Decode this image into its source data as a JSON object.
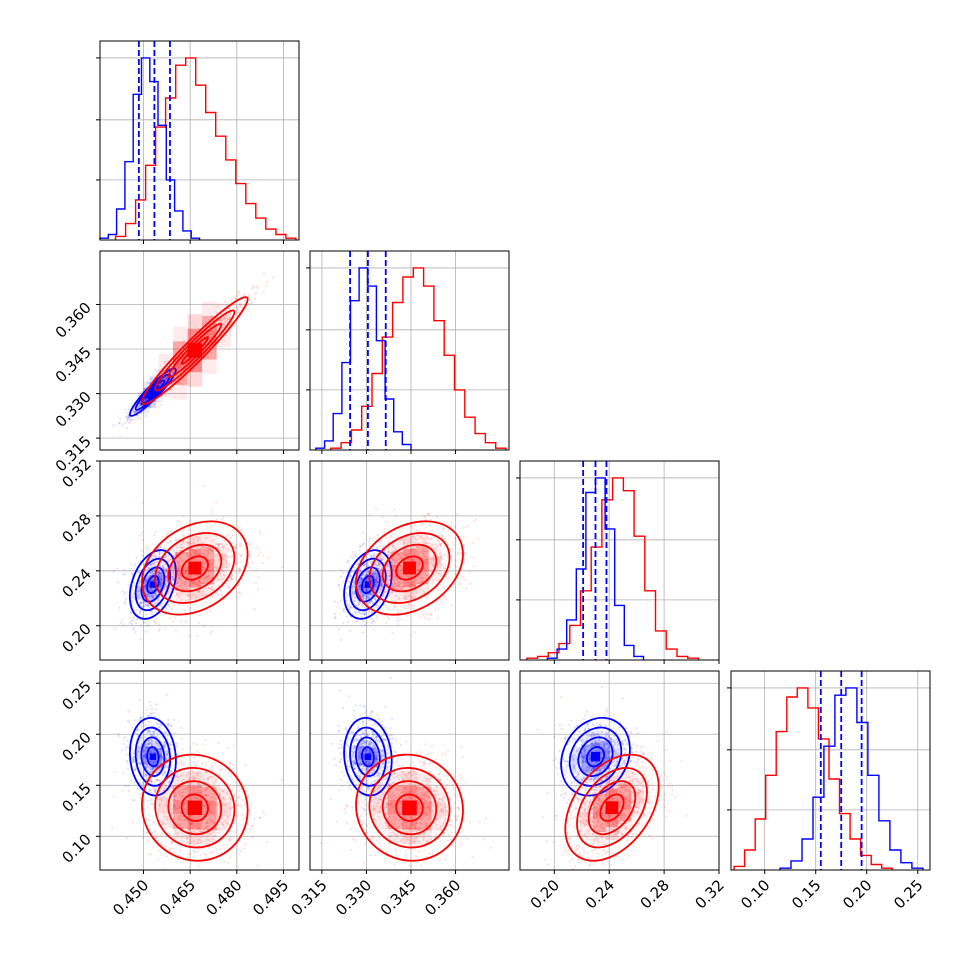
{
  "chart_data": {
    "type": "corner",
    "colors": {
      "blue": "#0000ff",
      "red": "#ff0000"
    },
    "grid": true,
    "parameters": [
      {
        "range": [
          0.436,
          0.5
        ],
        "ticks": [
          "0.450",
          "0.465",
          "0.480",
          "0.495"
        ],
        "tick_values": [
          0.45,
          0.465,
          0.48,
          0.495
        ],
        "quantiles_blue": [
          0.4485,
          0.4535,
          0.4585
        ],
        "hist_blue": [
          1,
          3,
          17,
          43,
          80,
          100,
          87,
          63,
          33,
          16,
          5,
          1
        ],
        "hist_red": [
          2,
          9,
          22,
          41,
          62,
          78,
          96,
          100,
          85,
          70,
          57,
          44,
          31,
          20,
          12,
          6,
          3,
          1
        ],
        "hist_blue_range": [
          0.436,
          0.468
        ],
        "hist_red_range": [
          0.441,
          0.499
        ],
        "hist_max": 100
      },
      {
        "range": [
          0.311,
          0.378
        ],
        "ticks": [
          "0.315",
          "0.330",
          "0.345",
          "0.360"
        ],
        "tick_values": [
          0.315,
          0.33,
          0.345,
          0.36
        ],
        "quantiles_blue": [
          0.3245,
          0.3305,
          0.3365
        ],
        "hist_blue": [
          1,
          5,
          20,
          48,
          82,
          100,
          90,
          60,
          28,
          10,
          3
        ],
        "hist_red": [
          1,
          4,
          11,
          24,
          42,
          62,
          81,
          95,
          100,
          90,
          71,
          52,
          33,
          18,
          9,
          4,
          1
        ],
        "hist_blue_range": [
          0.313,
          0.345
        ],
        "hist_red_range": [
          0.318,
          0.377
        ],
        "hist_max": 100
      },
      {
        "range": [
          0.175,
          0.32
        ],
        "ticks": [
          "0.20",
          "0.24",
          "0.28",
          "0.32"
        ],
        "tick_values": [
          0.2,
          0.24,
          0.28,
          0.32
        ],
        "quantiles_blue": [
          0.221,
          0.23,
          0.238
        ],
        "hist_blue": [
          1,
          6,
          22,
          50,
          92,
          100,
          72,
          30,
          8,
          2
        ],
        "hist_red": [
          1,
          2,
          4,
          9,
          19,
          38,
          62,
          88,
          100,
          93,
          68,
          38,
          16,
          6,
          2,
          1
        ],
        "hist_blue_range": [
          0.195,
          0.265
        ],
        "hist_red_range": [
          0.18,
          0.305
        ],
        "hist_max": 100
      },
      {
        "range": [
          0.067,
          0.262
        ],
        "ticks": [
          "0.10",
          "0.15",
          "0.20",
          "0.25"
        ],
        "tick_values": [
          0.1,
          0.15,
          0.2,
          0.25
        ],
        "quantiles_blue": [
          0.155,
          0.175,
          0.195
        ],
        "hist_blue": [
          1,
          5,
          17,
          40,
          68,
          96,
          100,
          81,
          52,
          27,
          11,
          4,
          1
        ],
        "hist_red": [
          2,
          11,
          28,
          52,
          76,
          95,
          100,
          89,
          72,
          50,
          31,
          17,
          8,
          3,
          1
        ],
        "hist_blue_range": [
          0.115,
          0.255
        ],
        "hist_red_range": [
          0.07,
          0.225
        ],
        "hist_max": 100
      }
    ],
    "blue_posterior": {
      "mean": [
        0.453,
        0.3305,
        0.23,
        0.178
      ],
      "std": [
        0.0037,
        0.004,
        0.0125,
        0.019
      ],
      "corr": [
        [
          1.0,
          0.93,
          0.35,
          -0.1
        ],
        [
          0.93,
          1.0,
          0.3,
          -0.1
        ],
        [
          0.35,
          0.3,
          1.0,
          0.2
        ],
        [
          -0.1,
          -0.1,
          0.2,
          1.0
        ]
      ]
    },
    "red_posterior": {
      "mean": [
        0.4665,
        0.3445,
        0.242,
        0.128
      ],
      "std": [
        0.0085,
        0.009,
        0.017,
        0.026
      ],
      "corr": [
        [
          1.0,
          0.96,
          0.3,
          -0.05
        ],
        [
          0.96,
          1.0,
          0.3,
          -0.05
        ],
        [
          0.3,
          0.3,
          1.0,
          0.4
        ],
        [
          -0.05,
          -0.05,
          0.4,
          1.0
        ]
      ]
    }
  }
}
